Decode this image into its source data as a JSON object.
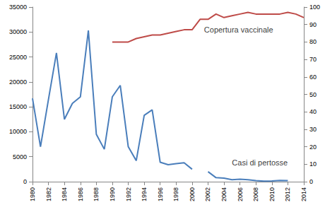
{
  "chart_data": {
    "type": "line",
    "x": [
      1980,
      1981,
      1982,
      1983,
      1984,
      1985,
      1986,
      1987,
      1988,
      1989,
      1990,
      1991,
      1992,
      1993,
      1994,
      1995,
      1996,
      1997,
      1998,
      1999,
      2000,
      2001,
      2002,
      2003,
      2004,
      2005,
      2006,
      2007,
      2008,
      2009,
      2010,
      2011,
      2012,
      2013,
      2014
    ],
    "xlim": [
      1980,
      2014
    ],
    "xticks": [
      1980,
      1982,
      1984,
      1986,
      1988,
      1990,
      1992,
      1994,
      1996,
      1998,
      2000,
      2002,
      2004,
      2006,
      2008,
      2010,
      2012,
      2014
    ],
    "ylim": [
      0,
      35000
    ],
    "yticks": [
      0,
      5000,
      10000,
      15000,
      20000,
      25000,
      30000,
      35000
    ],
    "y2lim": [
      0,
      100
    ],
    "y2ticks": [
      0,
      10,
      20,
      30,
      40,
      50,
      60,
      70,
      80,
      90,
      100
    ],
    "grid": false,
    "series": [
      {
        "color": "#4a7ebb",
        "values": [
          16700,
          7000,
          16500,
          25800,
          12500,
          15700,
          17000,
          30300,
          9500,
          6500,
          17000,
          19300,
          7000,
          4200,
          13300,
          14400,
          3900,
          3400,
          3600,
          3800,
          2500,
          null,
          2000,
          800,
          700,
          400,
          500,
          400,
          200,
          100,
          150,
          250,
          200,
          null,
          null
        ]
      },
      {
        "color": "#be4b48",
        "axis": "y2",
        "values": [
          null,
          null,
          null,
          null,
          null,
          null,
          null,
          null,
          null,
          null,
          80,
          80,
          80,
          82,
          83,
          84,
          84,
          85,
          86,
          87,
          87,
          93,
          93,
          96,
          94,
          95,
          96,
          97,
          96,
          96,
          96,
          96,
          97,
          96,
          94
        ]
      }
    ],
    "annotations": [
      {
        "text": "Copertura vaccinale",
        "x": 2001.5,
        "y": 87,
        "axis": "y2"
      },
      {
        "text": "Casi di pertosse",
        "x": 2005,
        "y": 3800
      }
    ]
  }
}
